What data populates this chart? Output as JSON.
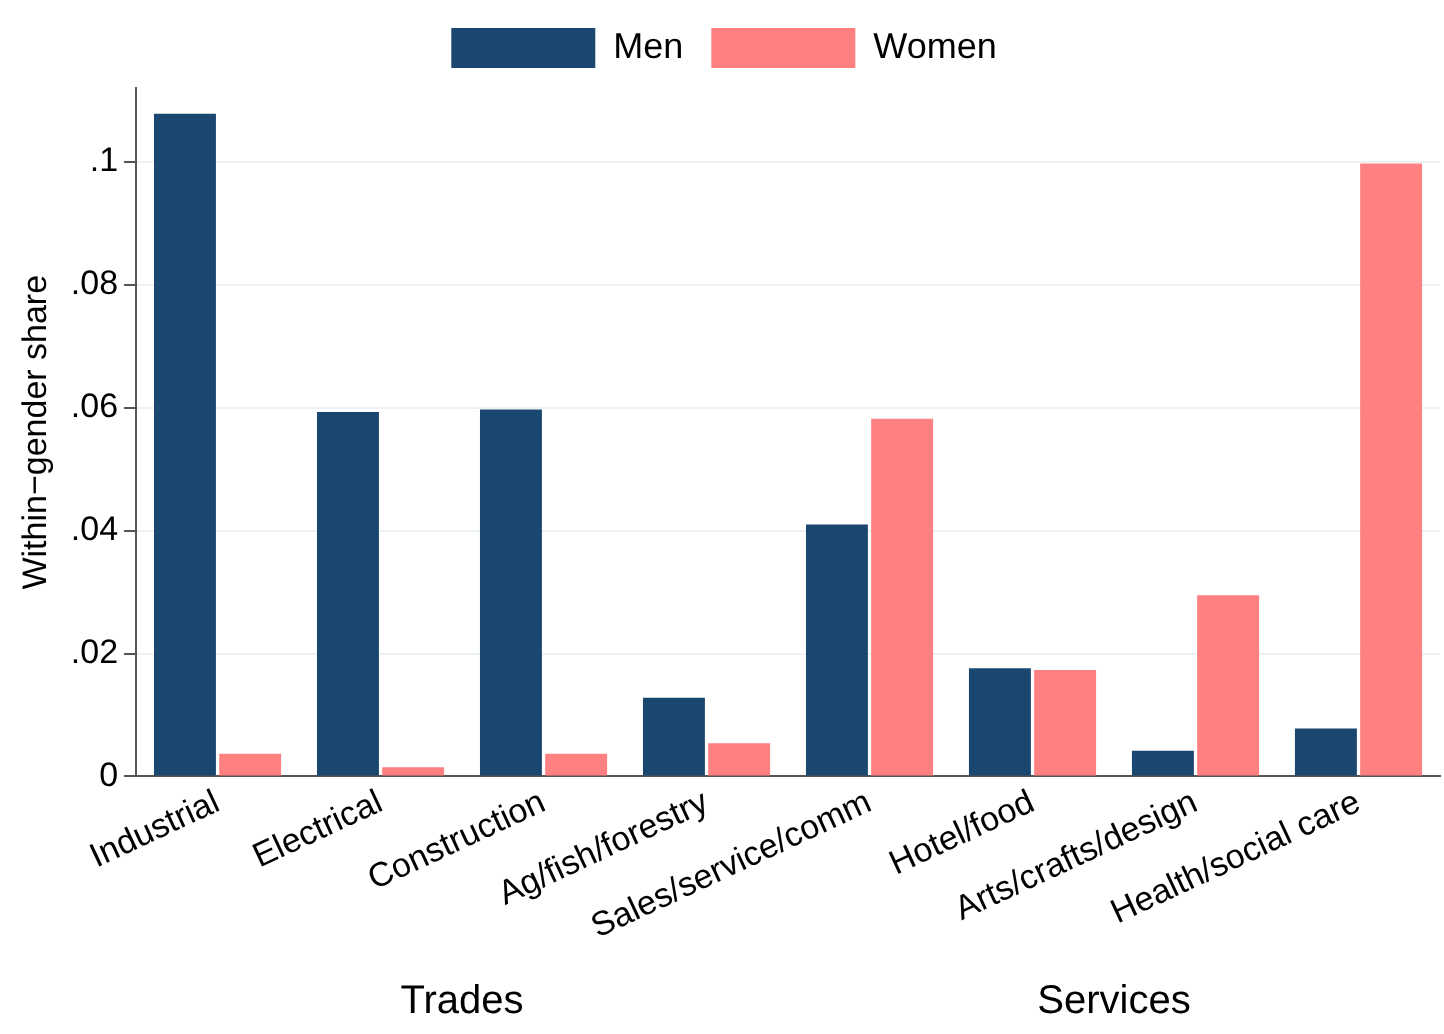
{
  "chart_data": {
    "type": "bar",
    "ylabel": "Within−gender share",
    "categories": [
      "Industrial",
      "Electrical",
      "Construction",
      "Ag/fish/forestry",
      "Sales/service/comm",
      "Hotel/food",
      "Arts/crafts/design",
      "Health/social care"
    ],
    "series": [
      {
        "name": "Men",
        "color": "#1a476f",
        "values": [
          0.1078,
          0.0593,
          0.0597,
          0.0128,
          0.041,
          0.0176,
          0.0042,
          0.0078
        ]
      },
      {
        "name": "Women",
        "color": "#ff8080",
        "values": [
          0.0037,
          0.0015,
          0.0037,
          0.0054,
          0.0582,
          0.0173,
          0.0295,
          0.0997
        ]
      }
    ],
    "ylim": [
      0,
      0.112
    ],
    "yticks": [
      {
        "value": 0,
        "label": "0"
      },
      {
        "value": 0.02,
        "label": ".02"
      },
      {
        "value": 0.04,
        "label": ".04"
      },
      {
        "value": 0.06,
        "label": ".06"
      },
      {
        "value": 0.08,
        "label": ".08"
      },
      {
        "value": 0.1,
        "label": ".1"
      }
    ],
    "grid": "y",
    "legend": "top",
    "annotations": [
      "Trades",
      "Services"
    ]
  }
}
